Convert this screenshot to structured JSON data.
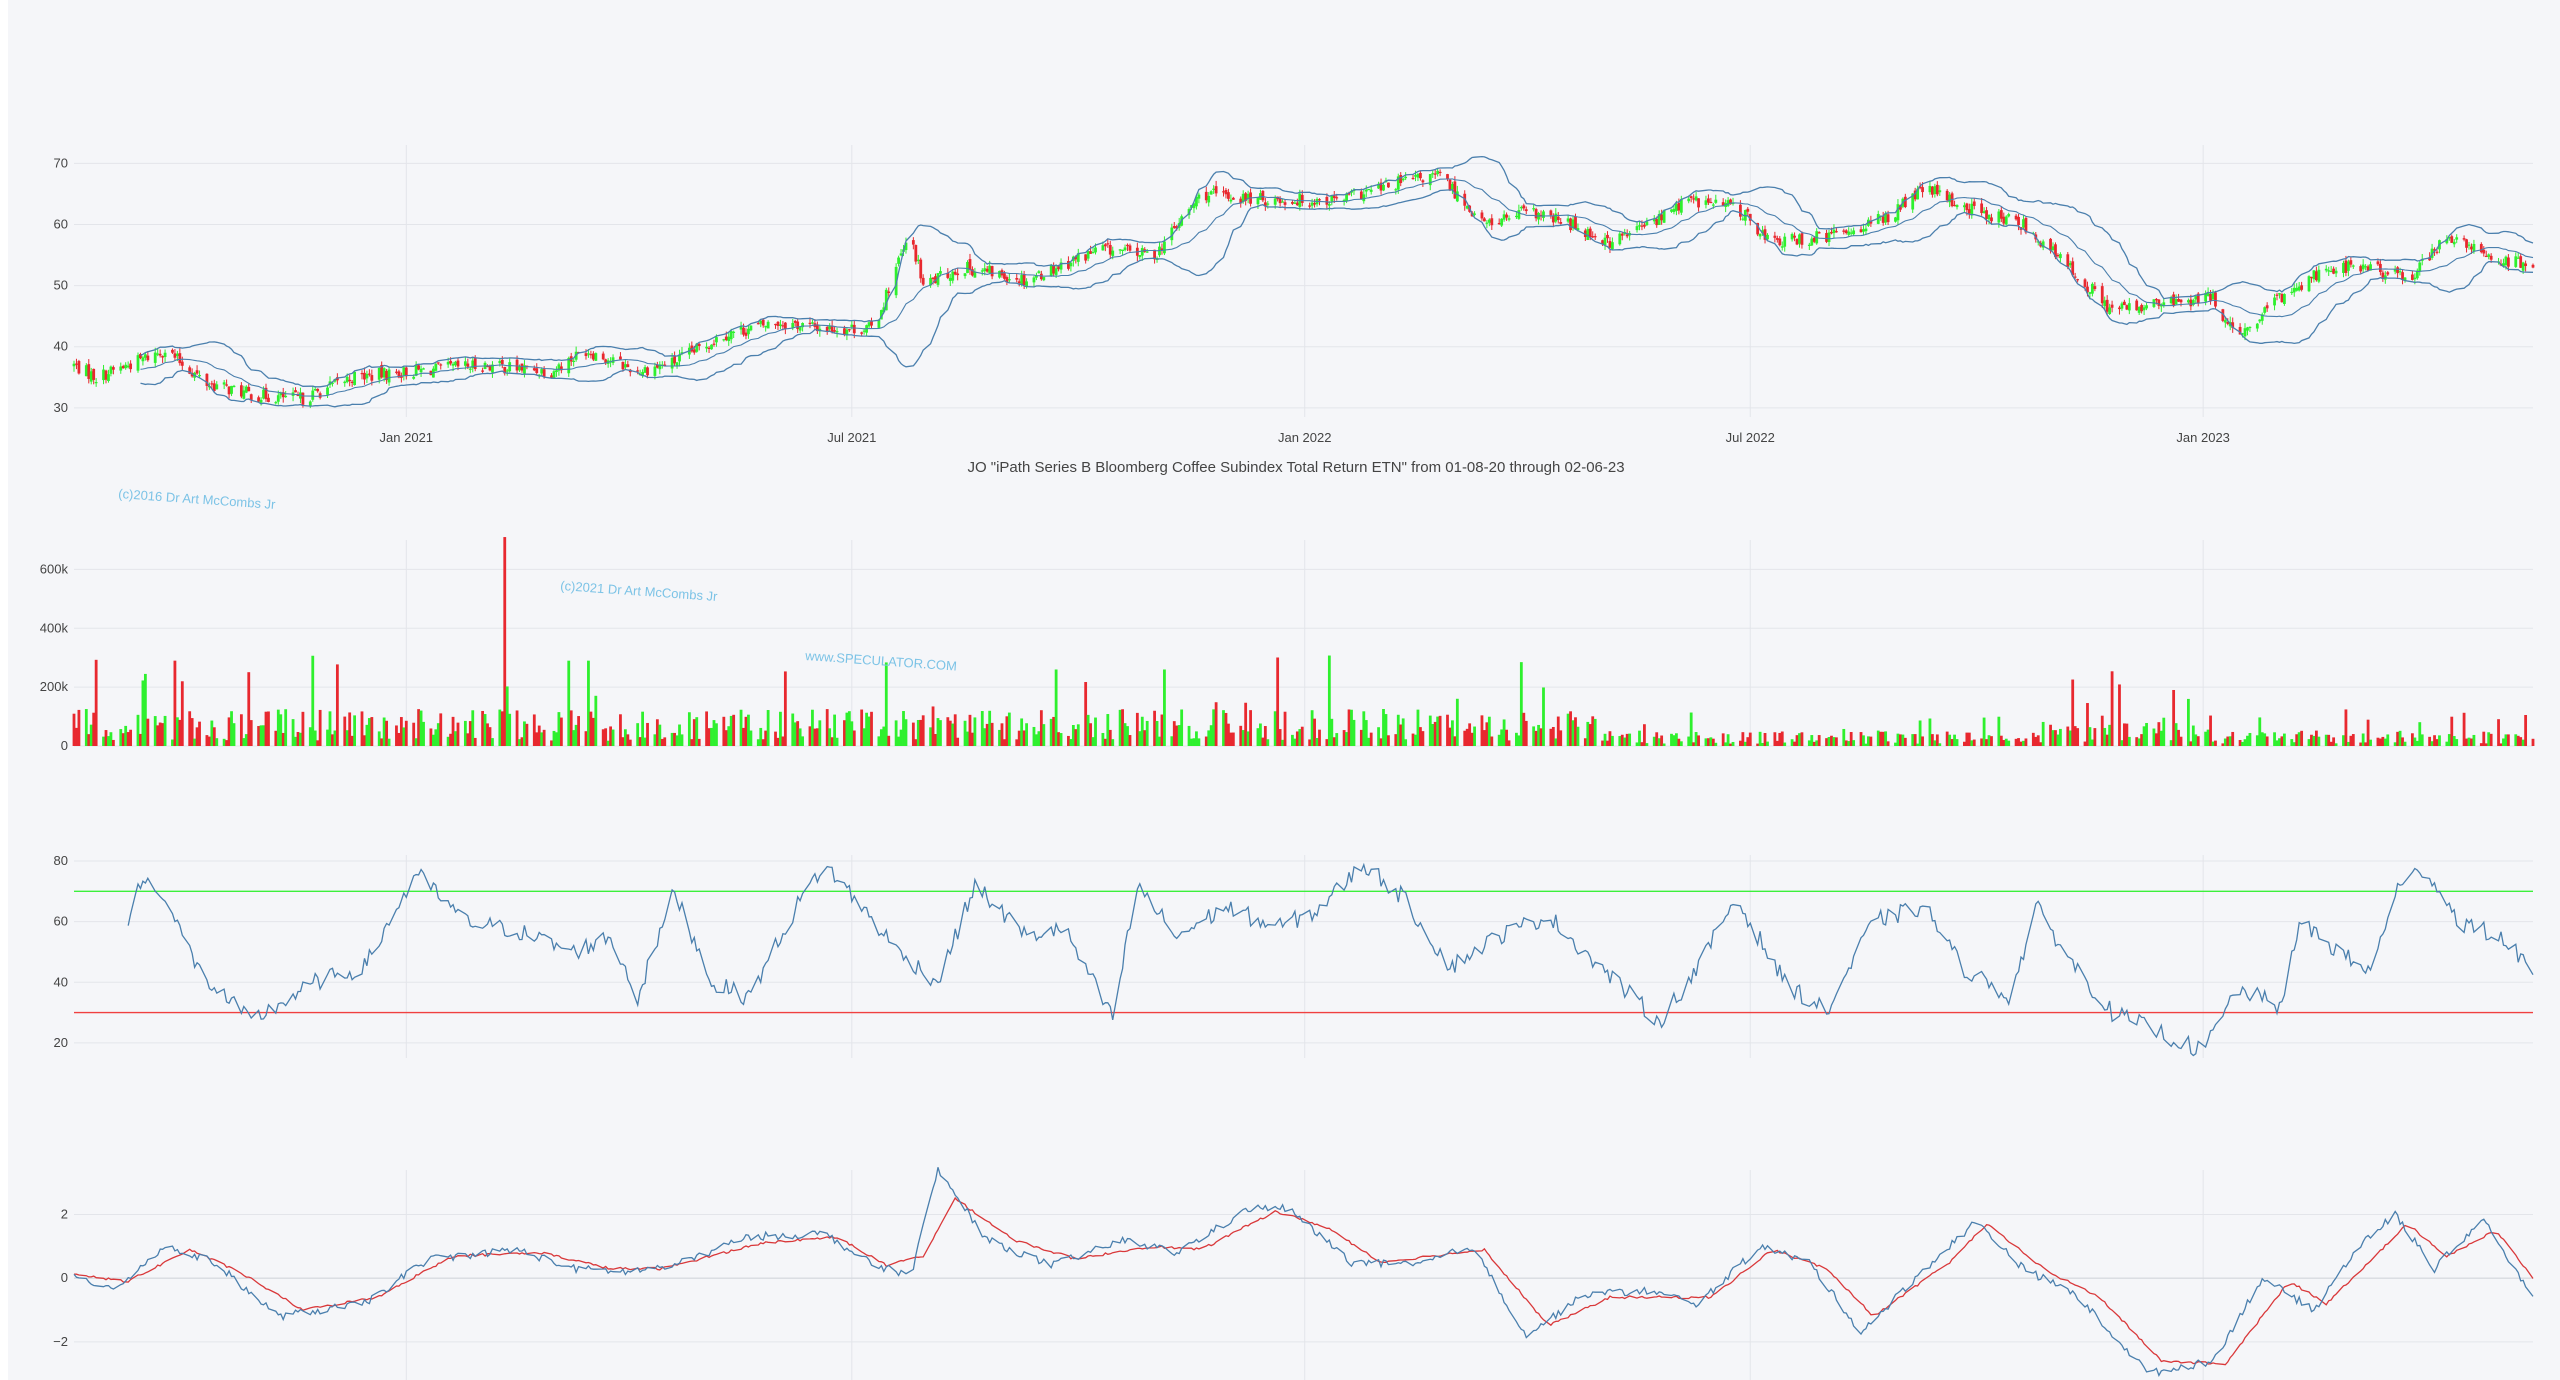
{
  "colors": {
    "background": "#f5f6f9",
    "grid": "#e3e5ea",
    "up": "#2ef02e",
    "down": "#e8282f",
    "band": "#4a7fad",
    "rsi": "#4a7fad",
    "rsi_upper": "#3cf03c",
    "rsi_lower": "#f04040",
    "macd": "#4a7fad",
    "signal": "#d9383a"
  },
  "title": "JO \"iPath Series B Bloomberg Coffee Subindex Total Return ETN\" from 01-08-20 through 02-06-23",
  "watermarks": [
    "(c)2016 Dr Art McCombs Jr",
    "(c)2021 Dr Art McCombs Jr",
    "www.SPECULATOR.COM"
  ],
  "chart_data": [
    {
      "type": "candlestick",
      "panel": "price",
      "x_ticks": [
        "Jan 2021",
        "Jul 2021",
        "Jan 2022",
        "Jul 2022",
        "Jan 2023"
      ],
      "x_tick_dates": [
        "2021-01-01",
        "2021-07-01",
        "2022-01-01",
        "2022-07-01",
        "2023-01-01"
      ],
      "x_range": [
        "2020-08-19",
        "2023-05-15"
      ],
      "y_ticks": [
        30,
        40,
        50,
        60,
        70
      ],
      "y_range": [
        28.5,
        73
      ],
      "overlays": [
        "bollinger_upper",
        "bollinger_middle",
        "bollinger_lower"
      ],
      "close_keypoints": [
        [
          "2020-08-19",
          37
        ],
        [
          "2020-08-28",
          35
        ],
        [
          "2020-09-10",
          37
        ],
        [
          "2020-09-25",
          39.5
        ],
        [
          "2020-10-12",
          34
        ],
        [
          "2020-11-01",
          32
        ],
        [
          "2020-11-20",
          31.5
        ],
        [
          "2020-12-10",
          35
        ],
        [
          "2021-01-05",
          36
        ],
        [
          "2021-02-01",
          37
        ],
        [
          "2021-03-01",
          36
        ],
        [
          "2021-03-15",
          39.5
        ],
        [
          "2021-04-05",
          36
        ],
        [
          "2021-04-20",
          37.5
        ],
        [
          "2021-05-10",
          42
        ],
        [
          "2021-06-01",
          44
        ],
        [
          "2021-06-20",
          43
        ],
        [
          "2021-07-10",
          43
        ],
        [
          "2021-07-20",
          54
        ],
        [
          "2021-07-25",
          58
        ],
        [
          "2021-07-30",
          50
        ],
        [
          "2021-08-15",
          53
        ],
        [
          "2021-09-10",
          51
        ],
        [
          "2021-10-10",
          56
        ],
        [
          "2021-11-01",
          55
        ],
        [
          "2021-11-20",
          65
        ],
        [
          "2021-12-15",
          64
        ],
        [
          "2022-01-15",
          64
        ],
        [
          "2022-02-10",
          67
        ],
        [
          "2022-02-25",
          68
        ],
        [
          "2022-03-15",
          60
        ],
        [
          "2022-04-01",
          62
        ],
        [
          "2022-04-20",
          60
        ],
        [
          "2022-05-05",
          57
        ],
        [
          "2022-05-25",
          61
        ],
        [
          "2022-06-05",
          64
        ],
        [
          "2022-06-25",
          63
        ],
        [
          "2022-07-10",
          57
        ],
        [
          "2022-08-01",
          58
        ],
        [
          "2022-08-25",
          61
        ],
        [
          "2022-09-10",
          66
        ],
        [
          "2022-09-25",
          63
        ],
        [
          "2022-10-20",
          60
        ],
        [
          "2022-11-10",
          52
        ],
        [
          "2022-11-25",
          46
        ],
        [
          "2022-12-15",
          47
        ],
        [
          "2023-01-05",
          48
        ],
        [
          "2023-01-15",
          41
        ],
        [
          "2023-02-01",
          48
        ],
        [
          "2023-02-20",
          53
        ],
        [
          "2023-03-10",
          53
        ],
        [
          "2023-03-25",
          51
        ],
        [
          "2023-04-10",
          58
        ],
        [
          "2023-04-25",
          55
        ],
        [
          "2023-05-15",
          53
        ]
      ]
    },
    {
      "type": "bar",
      "panel": "volume",
      "y_ticks": [
        "0",
        "200k",
        "400k",
        "600k"
      ],
      "y_tick_values": [
        0,
        200000,
        400000,
        600000
      ],
      "y_range": [
        0,
        700000
      ],
      "spikes": [
        [
          "2020-08-22",
          210000
        ],
        [
          "2020-09-29",
          290000
        ],
        [
          "2020-10-04",
          340000
        ],
        [
          "2020-10-17",
          230000
        ],
        [
          "2020-12-26",
          320000
        ],
        [
          "2021-02-10",
          710000
        ],
        [
          "2021-02-13",
          370000
        ],
        [
          "2021-03-16",
          290000
        ],
        [
          "2021-07-10",
          250000
        ],
        [
          "2021-09-22",
          260000
        ],
        [
          "2021-11-05",
          260000
        ],
        [
          "2022-11-05",
          195000
        ],
        [
          "2022-11-26",
          200000
        ],
        [
          "2022-12-26",
          160000
        ]
      ]
    },
    {
      "type": "line",
      "panel": "rsi",
      "y_ticks": [
        20,
        40,
        60,
        80
      ],
      "y_range": [
        15,
        82
      ],
      "upper_level": 70,
      "lower_level": 30,
      "keypoints": [
        [
          "2020-09-10",
          60
        ],
        [
          "2020-09-15",
          73
        ],
        [
          "2020-09-22",
          72
        ],
        [
          "2020-10-10",
          42
        ],
        [
          "2020-10-30",
          27
        ],
        [
          "2020-11-25",
          40
        ],
        [
          "2020-12-15",
          45
        ],
        [
          "2021-01-05",
          76
        ],
        [
          "2021-01-25",
          60
        ],
        [
          "2021-02-15",
          57
        ],
        [
          "2021-03-10",
          50
        ],
        [
          "2021-03-25",
          55
        ],
        [
          "2021-04-05",
          35
        ],
        [
          "2021-04-20",
          70
        ],
        [
          "2021-05-05",
          40
        ],
        [
          "2021-05-20",
          35
        ],
        [
          "2021-06-10",
          67
        ],
        [
          "2021-06-20",
          79
        ],
        [
          "2021-07-05",
          65
        ],
        [
          "2021-07-20",
          50
        ],
        [
          "2021-08-05",
          40
        ],
        [
          "2021-08-20",
          72
        ],
        [
          "2021-09-10",
          55
        ],
        [
          "2021-09-25",
          58
        ],
        [
          "2021-10-15",
          28
        ],
        [
          "2021-10-25",
          72
        ],
        [
          "2021-11-10",
          55
        ],
        [
          "2021-11-30",
          65
        ],
        [
          "2021-12-20",
          58
        ],
        [
          "2022-01-05",
          63
        ],
        [
          "2022-01-25",
          79
        ],
        [
          "2022-02-10",
          68
        ],
        [
          "2022-03-01",
          45
        ],
        [
          "2022-03-20",
          55
        ],
        [
          "2022-04-10",
          62
        ],
        [
          "2022-05-01",
          45
        ],
        [
          "2022-05-25",
          27
        ],
        [
          "2022-06-10",
          45
        ],
        [
          "2022-06-25",
          68
        ],
        [
          "2022-07-15",
          40
        ],
        [
          "2022-08-01",
          30
        ],
        [
          "2022-08-20",
          60
        ],
        [
          "2022-09-10",
          65
        ],
        [
          "2022-09-25",
          45
        ],
        [
          "2022-10-15",
          35
        ],
        [
          "2022-10-25",
          65
        ],
        [
          "2022-11-10",
          45
        ],
        [
          "2022-11-25",
          30
        ],
        [
          "2022-12-10",
          25
        ],
        [
          "2023-01-01",
          17
        ],
        [
          "2023-01-15",
          38
        ],
        [
          "2023-02-01",
          32
        ],
        [
          "2023-02-10",
          60
        ],
        [
          "2023-02-25",
          50
        ],
        [
          "2023-03-10",
          43
        ],
        [
          "2023-03-20",
          70
        ],
        [
          "2023-04-01",
          78
        ],
        [
          "2023-04-15",
          60
        ],
        [
          "2023-05-01",
          55
        ],
        [
          "2023-05-15",
          45
        ]
      ]
    },
    {
      "type": "line",
      "panel": "macd",
      "y_ticks": [
        "2",
        "0",
        "−2"
      ],
      "y_tick_values": [
        2,
        0,
        -2
      ],
      "y_range": [
        -3.2,
        3.4
      ],
      "series": [
        {
          "values_keypoints": [
            [
              "2020-08-19",
              0
            ],
            [
              "2020-09-05",
              -0.3
            ],
            [
              "2020-09-25",
              1.0
            ],
            [
              "2020-10-15",
              0.5
            ],
            [
              "2020-11-10",
              -1.2
            ],
            [
              "2020-12-15",
              -0.8
            ],
            [
              "2021-01-10",
              0.6
            ],
            [
              "2021-02-15",
              0.9
            ],
            [
              "2021-03-10",
              0.3
            ],
            [
              "2021-04-01",
              0.2
            ],
            [
              "2021-04-20",
              0.4
            ],
            [
              "2021-05-20",
              1.3
            ],
            [
              "2021-06-20",
              1.4
            ],
            [
              "2021-07-10",
              0.4
            ],
            [
              "2021-07-25",
              0.1
            ],
            [
              "2021-08-05",
              3.4
            ],
            [
              "2021-08-25",
              1.2
            ],
            [
              "2021-09-20",
              0.4
            ],
            [
              "2021-10-20",
              1.2
            ],
            [
              "2021-11-10",
              0.8
            ],
            [
              "2021-12-10",
              2.2
            ],
            [
              "2021-12-25",
              2.2
            ],
            [
              "2022-01-20",
              0.5
            ],
            [
              "2022-02-15",
              0.4
            ],
            [
              "2022-03-10",
              1.0
            ],
            [
              "2022-04-01",
              -1.8
            ],
            [
              "2022-04-25",
              -0.5
            ],
            [
              "2022-05-20",
              -0.4
            ],
            [
              "2022-06-10",
              -0.8
            ],
            [
              "2022-07-05",
              1.0
            ],
            [
              "2022-07-25",
              0.5
            ],
            [
              "2022-08-15",
              -1.7
            ],
            [
              "2022-09-10",
              0.3
            ],
            [
              "2022-10-01",
              1.8
            ],
            [
              "2022-10-20",
              0.3
            ],
            [
              "2022-11-10",
              -0.5
            ],
            [
              "2022-12-10",
              -3.0
            ],
            [
              "2023-01-05",
              -2.6
            ],
            [
              "2023-01-25",
              0
            ],
            [
              "2023-02-15",
              -1.0
            ],
            [
              "2023-03-05",
              1.0
            ],
            [
              "2023-03-20",
              2.0
            ],
            [
              "2023-04-05",
              0.3
            ],
            [
              "2023-04-25",
              1.9
            ],
            [
              "2023-05-05",
              0.5
            ],
            [
              "2023-05-15",
              -0.5
            ]
          ]
        },
        {
          "values_keypoints": [
            [
              "2020-08-19",
              0.1
            ],
            [
              "2020-09-10",
              -0.1
            ],
            [
              "2020-10-05",
              0.9
            ],
            [
              "2020-10-25",
              0.2
            ],
            [
              "2020-11-20",
              -1.0
            ],
            [
              "2020-12-20",
              -0.6
            ],
            [
              "2021-01-20",
              0.7
            ],
            [
              "2021-02-25",
              0.8
            ],
            [
              "2021-03-25",
              0.3
            ],
            [
              "2021-04-15",
              0.3
            ],
            [
              "2021-05-25",
              1.1
            ],
            [
              "2021-06-25",
              1.3
            ],
            [
              "2021-07-15",
              0.4
            ],
            [
              "2021-07-30",
              0.7
            ],
            [
              "2021-08-12",
              2.5
            ],
            [
              "2021-09-05",
              1.2
            ],
            [
              "2021-09-30",
              0.6
            ],
            [
              "2021-10-30",
              1.0
            ],
            [
              "2021-11-20",
              0.9
            ],
            [
              "2021-12-20",
              2.1
            ],
            [
              "2022-01-10",
              1.6
            ],
            [
              "2022-02-01",
              0.5
            ],
            [
              "2022-03-15",
              0.9
            ],
            [
              "2022-04-10",
              -1.5
            ],
            [
              "2022-05-05",
              -0.6
            ],
            [
              "2022-06-15",
              -0.6
            ],
            [
              "2022-07-10",
              0.9
            ],
            [
              "2022-08-01",
              0.3
            ],
            [
              "2022-08-20",
              -1.2
            ],
            [
              "2022-09-20",
              0.5
            ],
            [
              "2022-10-05",
              1.7
            ],
            [
              "2022-10-30",
              0.2
            ],
            [
              "2022-11-20",
              -0.6
            ],
            [
              "2022-12-15",
              -2.6
            ],
            [
              "2023-01-10",
              -2.7
            ],
            [
              "2023-02-05",
              -0.1
            ],
            [
              "2023-02-20",
              -0.8
            ],
            [
              "2023-03-25",
              1.7
            ],
            [
              "2023-04-10",
              0.7
            ],
            [
              "2023-04-30",
              1.5
            ],
            [
              "2023-05-15",
              0
            ]
          ]
        }
      ]
    }
  ]
}
